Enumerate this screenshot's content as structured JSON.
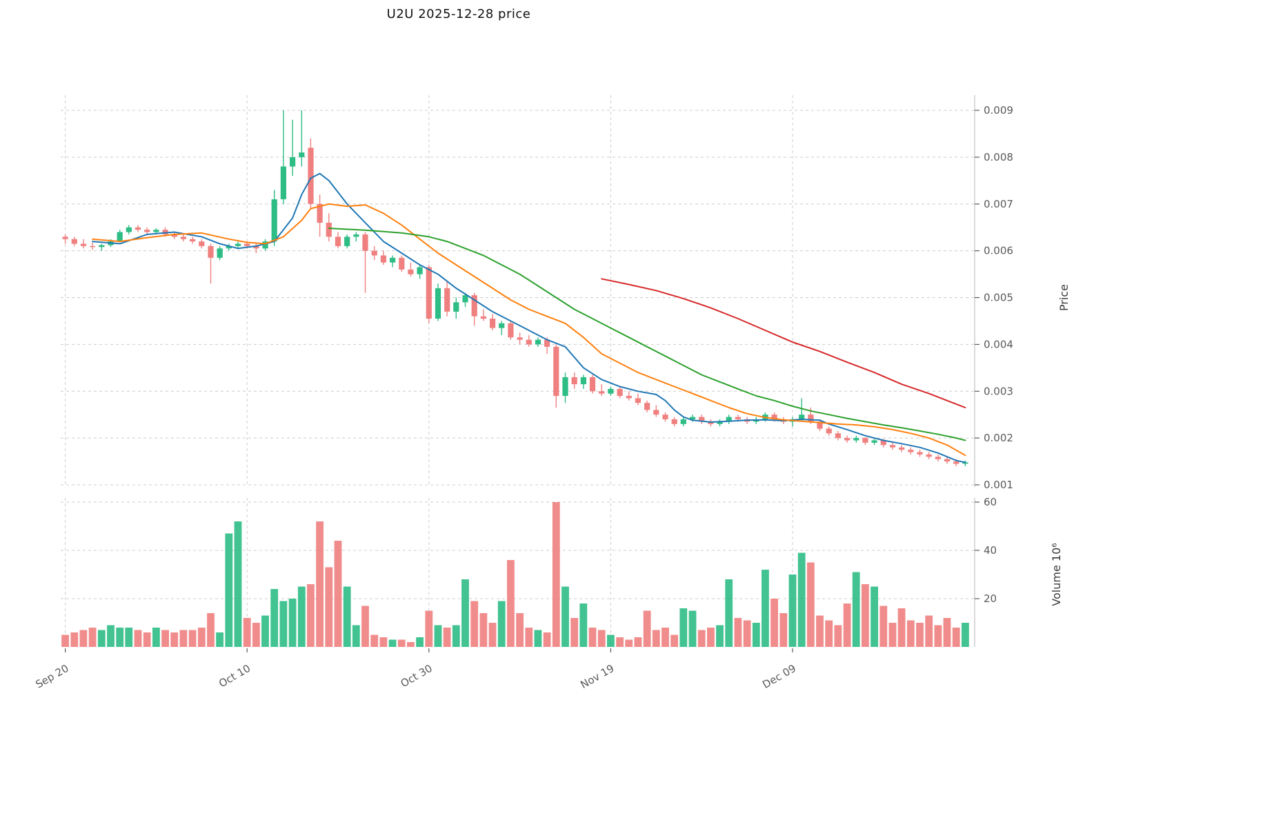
{
  "title": "U2U  2025-12-28  price",
  "colors": {
    "up": "#2EBD85",
    "down": "#F08080",
    "grid": "#cccccc",
    "spine": "#c0c0c0",
    "tick_text": "#595959",
    "axis_label": "#3a3a3a",
    "title_text": "#111111"
  },
  "axes": {
    "price_label": "Price",
    "volume_label": "Volume  10⁶",
    "price_ticks": [
      {
        "v": 0.001,
        "label": "0.001"
      },
      {
        "v": 0.002,
        "label": "0.002"
      },
      {
        "v": 0.003,
        "label": "0.003"
      },
      {
        "v": 0.004,
        "label": "0.004"
      },
      {
        "v": 0.005,
        "label": "0.005"
      },
      {
        "v": 0.006,
        "label": "0.006"
      },
      {
        "v": 0.007,
        "label": "0.007"
      },
      {
        "v": 0.008,
        "label": "0.008"
      },
      {
        "v": 0.009,
        "label": "0.009"
      }
    ],
    "volume_ticks": [
      {
        "v": 20,
        "label": "20"
      },
      {
        "v": 40,
        "label": "40"
      },
      {
        "v": 60,
        "label": "60"
      }
    ],
    "x_ticks": [
      {
        "i": 0,
        "label": "Sep 20"
      },
      {
        "i": 20,
        "label": "Oct 10"
      },
      {
        "i": 40,
        "label": "Oct 30"
      },
      {
        "i": 60,
        "label": "Nov 19"
      },
      {
        "i": 80,
        "label": "Dec 09"
      }
    ]
  },
  "chart_data": {
    "type": "candlestick",
    "symbol": "U2U",
    "as_of_date": "2025-12-28",
    "price_ylim": [
      0.001,
      0.009
    ],
    "volume_ylim": [
      0,
      60
    ],
    "volume_unit": "1e6",
    "grid": true,
    "open": [
      0.0063,
      0.00625,
      0.00615,
      0.0061,
      0.00608,
      0.00612,
      0.0062,
      0.0064,
      0.0065,
      0.00645,
      0.0064,
      0.00645,
      0.00635,
      0.0063,
      0.00625,
      0.0062,
      0.0061,
      0.00585,
      0.00605,
      0.0061,
      0.00615,
      0.0061,
      0.00605,
      0.0062,
      0.0071,
      0.0078,
      0.008,
      0.0082,
      0.007,
      0.0066,
      0.0063,
      0.0061,
      0.0063,
      0.00635,
      0.006,
      0.0059,
      0.00575,
      0.00585,
      0.0056,
      0.0055,
      0.00565,
      0.00455,
      0.0052,
      0.0047,
      0.0049,
      0.00505,
      0.0046,
      0.00455,
      0.00435,
      0.00445,
      0.00415,
      0.0041,
      0.004,
      0.0041,
      0.00395,
      0.0029,
      0.0033,
      0.00315,
      0.0033,
      0.003,
      0.00295,
      0.00305,
      0.0029,
      0.00285,
      0.00275,
      0.0026,
      0.0025,
      0.0024,
      0.0023,
      0.0024,
      0.00245,
      0.00235,
      0.0023,
      0.00235,
      0.00245,
      0.0024,
      0.00235,
      0.0024,
      0.0025,
      0.0024,
      0.00235,
      0.0024,
      0.0025,
      0.00235,
      0.0022,
      0.0021,
      0.002,
      0.00195,
      0.002,
      0.0019,
      0.00195,
      0.00185,
      0.0018,
      0.00175,
      0.0017,
      0.00165,
      0.0016,
      0.00155,
      0.0015,
      0.00145
    ],
    "high": [
      0.00635,
      0.0063,
      0.00625,
      0.00618,
      0.00615,
      0.00625,
      0.00645,
      0.00655,
      0.00655,
      0.0065,
      0.00648,
      0.0065,
      0.0064,
      0.00635,
      0.0063,
      0.00625,
      0.00615,
      0.0061,
      0.00615,
      0.0062,
      0.0062,
      0.00615,
      0.00625,
      0.0073,
      0.009,
      0.0088,
      0.009,
      0.0084,
      0.0072,
      0.0068,
      0.0064,
      0.00635,
      0.0064,
      0.0064,
      0.0061,
      0.006,
      0.0059,
      0.0059,
      0.00575,
      0.0057,
      0.0057,
      0.0053,
      0.00535,
      0.005,
      0.0051,
      0.0051,
      0.00475,
      0.00465,
      0.0045,
      0.0045,
      0.00425,
      0.0042,
      0.00415,
      0.00415,
      0.004,
      0.0034,
      0.0034,
      0.00335,
      0.00335,
      0.00315,
      0.0031,
      0.0031,
      0.003,
      0.00295,
      0.0028,
      0.0027,
      0.00255,
      0.00245,
      0.00245,
      0.0025,
      0.0025,
      0.0024,
      0.0024,
      0.0025,
      0.0025,
      0.00245,
      0.00245,
      0.00255,
      0.00255,
      0.00245,
      0.00245,
      0.00285,
      0.00265,
      0.0024,
      0.00225,
      0.00215,
      0.00205,
      0.00205,
      0.00202,
      0.00198,
      0.00198,
      0.0019,
      0.00185,
      0.0018,
      0.00175,
      0.0017,
      0.00165,
      0.0016,
      0.00155,
      0.00152
    ],
    "low": [
      0.00615,
      0.0061,
      0.00605,
      0.00602,
      0.006,
      0.00608,
      0.00618,
      0.00635,
      0.0064,
      0.00635,
      0.00635,
      0.0063,
      0.00625,
      0.0062,
      0.00615,
      0.00605,
      0.0053,
      0.0058,
      0.006,
      0.00605,
      0.00605,
      0.00595,
      0.006,
      0.0061,
      0.007,
      0.0076,
      0.0078,
      0.0069,
      0.0063,
      0.0062,
      0.00605,
      0.00605,
      0.0062,
      0.0051,
      0.0058,
      0.0057,
      0.00565,
      0.00555,
      0.00545,
      0.0054,
      0.00445,
      0.0045,
      0.0046,
      0.00455,
      0.0048,
      0.0044,
      0.0045,
      0.0043,
      0.0042,
      0.0041,
      0.004,
      0.00395,
      0.00395,
      0.0038,
      0.00265,
      0.00275,
      0.00305,
      0.00305,
      0.00295,
      0.0029,
      0.0029,
      0.00285,
      0.0028,
      0.0027,
      0.00255,
      0.00245,
      0.00235,
      0.00225,
      0.00225,
      0.00235,
      0.0023,
      0.00225,
      0.00225,
      0.0023,
      0.00235,
      0.0023,
      0.0023,
      0.00235,
      0.00235,
      0.0023,
      0.00225,
      0.00235,
      0.0023,
      0.00215,
      0.00205,
      0.00195,
      0.0019,
      0.0019,
      0.00185,
      0.00185,
      0.0018,
      0.00175,
      0.0017,
      0.00165,
      0.0016,
      0.00155,
      0.0015,
      0.00145,
      0.0014,
      0.0014
    ],
    "close": [
      0.00625,
      0.00615,
      0.0061,
      0.00608,
      0.00612,
      0.0062,
      0.0064,
      0.0065,
      0.00645,
      0.0064,
      0.00645,
      0.00635,
      0.0063,
      0.00625,
      0.0062,
      0.0061,
      0.00585,
      0.00605,
      0.0061,
      0.00615,
      0.0061,
      0.00605,
      0.0062,
      0.0071,
      0.0078,
      0.008,
      0.0081,
      0.007,
      0.0066,
      0.0063,
      0.0061,
      0.0063,
      0.00635,
      0.006,
      0.0059,
      0.00575,
      0.00585,
      0.0056,
      0.0055,
      0.00565,
      0.00455,
      0.0052,
      0.0047,
      0.0049,
      0.00505,
      0.0046,
      0.00455,
      0.00435,
      0.00445,
      0.00415,
      0.0041,
      0.004,
      0.0041,
      0.00395,
      0.0029,
      0.0033,
      0.00315,
      0.0033,
      0.003,
      0.00295,
      0.00305,
      0.0029,
      0.00285,
      0.00275,
      0.0026,
      0.0025,
      0.0024,
      0.0023,
      0.0024,
      0.00245,
      0.00235,
      0.0023,
      0.00235,
      0.00245,
      0.0024,
      0.00235,
      0.0024,
      0.0025,
      0.0024,
      0.00235,
      0.0024,
      0.0025,
      0.00235,
      0.0022,
      0.0021,
      0.002,
      0.00195,
      0.002,
      0.0019,
      0.00195,
      0.00185,
      0.0018,
      0.00175,
      0.0017,
      0.00165,
      0.0016,
      0.00155,
      0.0015,
      0.00145,
      0.00148
    ],
    "volume": [
      5,
      6,
      7,
      8,
      7,
      9,
      8,
      8,
      7,
      6,
      8,
      7,
      6,
      7,
      7,
      8,
      14,
      6,
      47,
      52,
      12,
      10,
      13,
      24,
      19,
      20,
      25,
      26,
      52,
      33,
      44,
      25,
      9,
      17,
      5,
      4,
      3,
      3,
      2,
      4,
      15,
      9,
      8,
      9,
      28,
      19,
      14,
      10,
      19,
      36,
      14,
      8,
      7,
      6,
      60,
      25,
      12,
      18,
      8,
      7,
      5,
      4,
      3,
      4,
      15,
      7,
      8,
      5,
      16,
      15,
      7,
      8,
      9,
      28,
      12,
      11,
      10,
      32,
      20,
      14,
      30,
      39,
      35,
      13,
      11,
      9,
      18,
      31,
      26,
      25,
      17,
      10,
      16,
      11,
      10,
      13,
      9,
      12,
      8,
      10
    ],
    "overlays": [
      {
        "name": "ma-fast",
        "color": "#1f77b4",
        "points": [
          [
            3,
            0.0062
          ],
          [
            6,
            0.00615
          ],
          [
            9,
            0.00635
          ],
          [
            12,
            0.0064
          ],
          [
            15,
            0.0063
          ],
          [
            17,
            0.00615
          ],
          [
            19,
            0.00605
          ],
          [
            21,
            0.0061
          ],
          [
            23,
            0.0062
          ],
          [
            25,
            0.0067
          ],
          [
            26,
            0.0072
          ],
          [
            27,
            0.00755
          ],
          [
            28,
            0.00765
          ],
          [
            29,
            0.0075
          ],
          [
            31,
            0.007
          ],
          [
            33,
            0.0066
          ],
          [
            35,
            0.0062
          ],
          [
            37,
            0.00595
          ],
          [
            39,
            0.0057
          ],
          [
            41,
            0.0055
          ],
          [
            43,
            0.0052
          ],
          [
            45,
            0.00495
          ],
          [
            47,
            0.0047
          ],
          [
            49,
            0.0045
          ],
          [
            51,
            0.0043
          ],
          [
            53,
            0.0041
          ],
          [
            55,
            0.00395
          ],
          [
            57,
            0.0035
          ],
          [
            59,
            0.00325
          ],
          [
            61,
            0.0031
          ],
          [
            63,
            0.003
          ],
          [
            65,
            0.00293
          ],
          [
            66,
            0.0028
          ],
          [
            67,
            0.0026
          ],
          [
            68,
            0.00245
          ],
          [
            69,
            0.00238
          ],
          [
            71,
            0.00234
          ],
          [
            73,
            0.00236
          ],
          [
            75,
            0.00238
          ],
          [
            77,
            0.00239
          ],
          [
            79,
            0.00237
          ],
          [
            81,
            0.0024
          ],
          [
            83,
            0.00238
          ],
          [
            84,
            0.0023
          ],
          [
            86,
            0.00218
          ],
          [
            88,
            0.00205
          ],
          [
            90,
            0.00195
          ],
          [
            92,
            0.00188
          ],
          [
            94,
            0.0018
          ],
          [
            96,
            0.00168
          ],
          [
            98,
            0.00152
          ],
          [
            99,
            0.00148
          ]
        ]
      },
      {
        "name": "ma-mid",
        "color": "#ff7f0e",
        "points": [
          [
            3,
            0.00625
          ],
          [
            6,
            0.0062
          ],
          [
            9,
            0.00628
          ],
          [
            12,
            0.00635
          ],
          [
            15,
            0.00638
          ],
          [
            18,
            0.00625
          ],
          [
            20,
            0.00618
          ],
          [
            22,
            0.00615
          ],
          [
            24,
            0.0063
          ],
          [
            26,
            0.00665
          ],
          [
            27,
            0.0069
          ],
          [
            29,
            0.007
          ],
          [
            31,
            0.00695
          ],
          [
            33,
            0.00698
          ],
          [
            35,
            0.0068
          ],
          [
            37,
            0.00655
          ],
          [
            39,
            0.00625
          ],
          [
            41,
            0.00595
          ],
          [
            43,
            0.0057
          ],
          [
            45,
            0.00545
          ],
          [
            47,
            0.0052
          ],
          [
            49,
            0.00495
          ],
          [
            51,
            0.00475
          ],
          [
            53,
            0.0046
          ],
          [
            55,
            0.00445
          ],
          [
            57,
            0.00415
          ],
          [
            59,
            0.0038
          ],
          [
            61,
            0.0036
          ],
          [
            63,
            0.0034
          ],
          [
            65,
            0.00325
          ],
          [
            67,
            0.0031
          ],
          [
            69,
            0.00295
          ],
          [
            71,
            0.0028
          ],
          [
            73,
            0.00265
          ],
          [
            75,
            0.00252
          ],
          [
            77,
            0.00244
          ],
          [
            79,
            0.00239
          ],
          [
            81,
            0.00236
          ],
          [
            83,
            0.00233
          ],
          [
            85,
            0.0023
          ],
          [
            87,
            0.00228
          ],
          [
            89,
            0.00224
          ],
          [
            91,
            0.00218
          ],
          [
            93,
            0.0021
          ],
          [
            95,
            0.002
          ],
          [
            97,
            0.00185
          ],
          [
            99,
            0.00163
          ]
        ]
      },
      {
        "name": "ma-long",
        "color": "#2ca02c",
        "points": [
          [
            29,
            0.00648
          ],
          [
            33,
            0.00644
          ],
          [
            37,
            0.00638
          ],
          [
            40,
            0.0063
          ],
          [
            42,
            0.0062
          ],
          [
            44,
            0.00605
          ],
          [
            46,
            0.0059
          ],
          [
            48,
            0.0057
          ],
          [
            50,
            0.0055
          ],
          [
            52,
            0.00525
          ],
          [
            54,
            0.005
          ],
          [
            56,
            0.00475
          ],
          [
            58,
            0.00455
          ],
          [
            60,
            0.00435
          ],
          [
            62,
            0.00415
          ],
          [
            64,
            0.00395
          ],
          [
            66,
            0.00375
          ],
          [
            68,
            0.00355
          ],
          [
            70,
            0.00335
          ],
          [
            72,
            0.0032
          ],
          [
            74,
            0.00305
          ],
          [
            76,
            0.0029
          ],
          [
            78,
            0.0028
          ],
          [
            80,
            0.00268
          ],
          [
            82,
            0.00258
          ],
          [
            84,
            0.0025
          ],
          [
            86,
            0.00242
          ],
          [
            88,
            0.00235
          ],
          [
            90,
            0.00228
          ],
          [
            92,
            0.00222
          ],
          [
            94,
            0.00215
          ],
          [
            96,
            0.00208
          ],
          [
            98,
            0.002
          ],
          [
            99,
            0.00195
          ]
        ]
      },
      {
        "name": "ma-xlong",
        "color": "#d62728",
        "points": [
          [
            59,
            0.0054
          ],
          [
            62,
            0.00528
          ],
          [
            65,
            0.00515
          ],
          [
            68,
            0.00498
          ],
          [
            71,
            0.00478
          ],
          [
            74,
            0.00455
          ],
          [
            77,
            0.0043
          ],
          [
            80,
            0.00405
          ],
          [
            83,
            0.00385
          ],
          [
            86,
            0.00362
          ],
          [
            89,
            0.0034
          ],
          [
            92,
            0.00315
          ],
          [
            95,
            0.00295
          ],
          [
            97,
            0.0028
          ],
          [
            99,
            0.00265
          ]
        ]
      }
    ]
  }
}
